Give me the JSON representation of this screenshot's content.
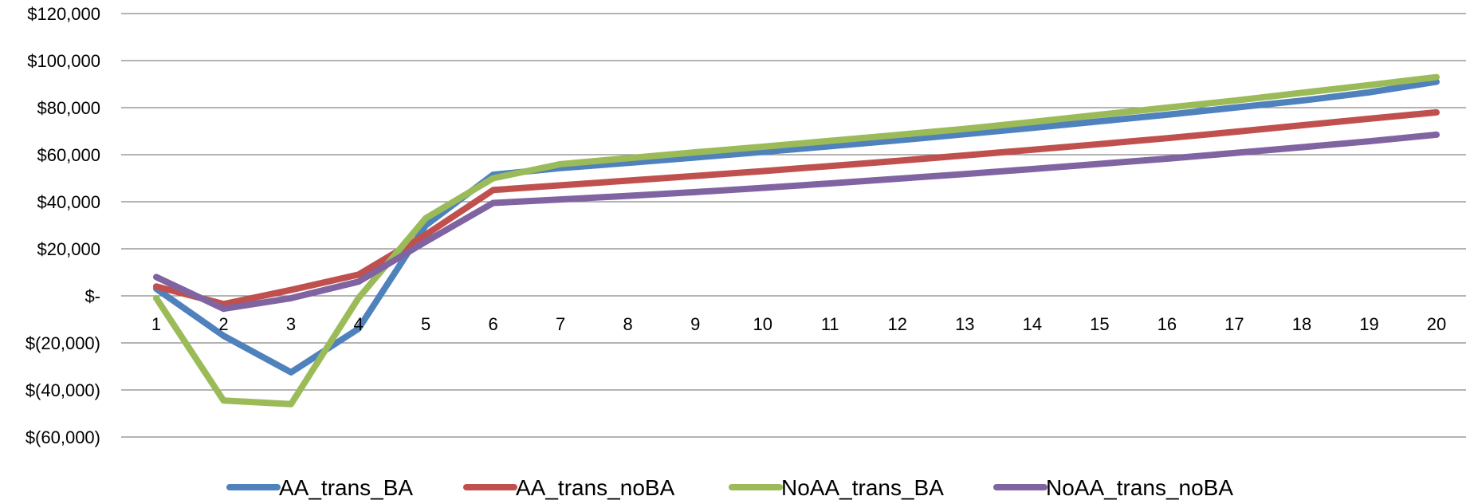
{
  "chart_data": {
    "type": "line",
    "title": "",
    "xlabel": "",
    "ylabel": "",
    "x": [
      1,
      2,
      3,
      4,
      5,
      6,
      7,
      8,
      9,
      10,
      11,
      12,
      13,
      14,
      15,
      16,
      17,
      18,
      19,
      20
    ],
    "x_tick_labels": [
      "1",
      "2",
      "3",
      "4",
      "5",
      "6",
      "7",
      "8",
      "9",
      "10",
      "11",
      "12",
      "13",
      "14",
      "15",
      "16",
      "17",
      "18",
      "19",
      "20"
    ],
    "ylim": [
      -60000,
      120000
    ],
    "y_ticks": [
      120000,
      100000,
      80000,
      60000,
      40000,
      20000,
      0,
      -20000,
      -40000,
      -60000
    ],
    "y_tick_labels": [
      "$120,000",
      "$100,000",
      "$80,000",
      "$60,000",
      "$40,000",
      "$20,000",
      "$-",
      "$(20,000)",
      "$(40,000)",
      "$(60,000)"
    ],
    "grid": true,
    "legend_position": "bottom",
    "series": [
      {
        "name": "AA_trans_BA",
        "color": "#4F81BD",
        "values": [
          3000,
          -17000,
          -32500,
          -14000,
          30000,
          51500,
          54300,
          56500,
          58800,
          61200,
          63600,
          66100,
          68700,
          71400,
          74200,
          77000,
          80000,
          83000,
          86500,
          91000
        ]
      },
      {
        "name": "AA_trans_noBA",
        "color": "#C0504D",
        "values": [
          4000,
          -3500,
          2500,
          9000,
          26000,
          45000,
          47000,
          49000,
          51000,
          53000,
          55200,
          57400,
          59700,
          62100,
          64500,
          67000,
          69700,
          72500,
          75300,
          78000
        ]
      },
      {
        "name": "NoAA_trans_BA",
        "color": "#9BBB59",
        "values": [
          -1000,
          -44500,
          -46000,
          -1000,
          33000,
          50000,
          56000,
          58500,
          61000,
          63400,
          65900,
          68400,
          71000,
          73900,
          77000,
          80000,
          83000,
          86300,
          89600,
          93000
        ]
      },
      {
        "name": "NoAA_trans_noBA",
        "color": "#8064A2",
        "values": [
          8000,
          -5500,
          -1000,
          6000,
          23000,
          39500,
          41000,
          42500,
          44100,
          45900,
          47800,
          49800,
          51800,
          53900,
          56100,
          58300,
          60700,
          63200,
          65700,
          68500
        ]
      }
    ]
  }
}
